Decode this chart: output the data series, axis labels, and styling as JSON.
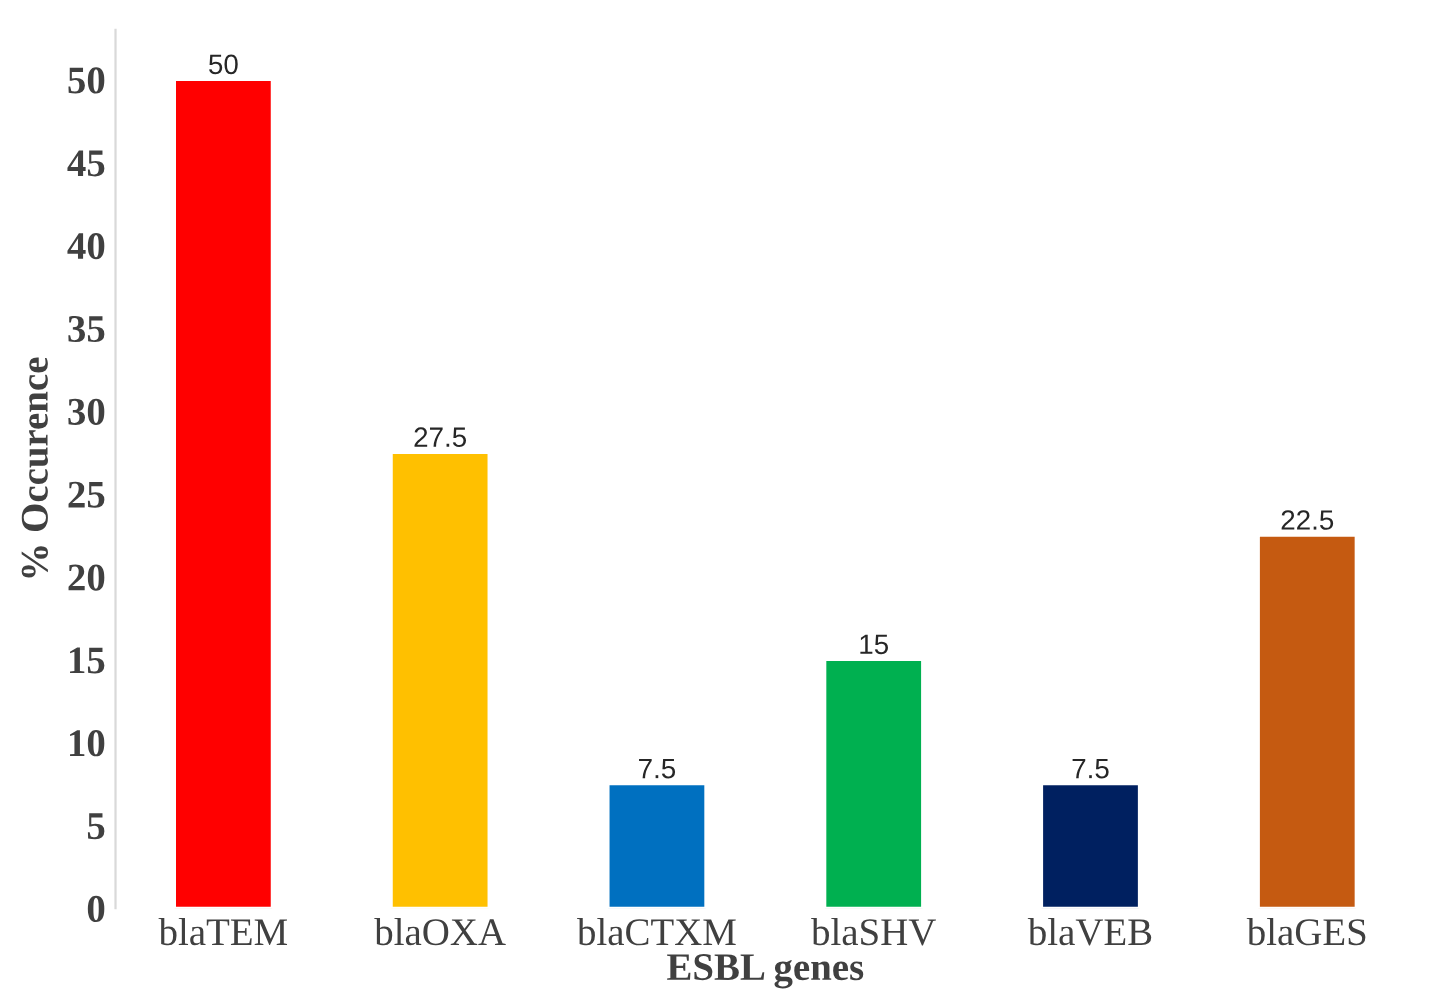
{
  "chart_data": {
    "type": "bar",
    "xlabel": "ESBL genes",
    "ylabel": "% Occurence",
    "categories": [
      "blaTEM",
      "blaOXA",
      "blaCTXM",
      "blaSHV",
      "blaVEB",
      "blaGES"
    ],
    "values": [
      50,
      27.5,
      7.5,
      15,
      7.5,
      22.5
    ],
    "colors": [
      "#ff0000",
      "#ffc000",
      "#0070c0",
      "#00b050",
      "#002060",
      "#c55a11"
    ],
    "ylim": [
      0,
      53
    ],
    "yticks": [
      0,
      5,
      10,
      15,
      20,
      25,
      30,
      35,
      40,
      45,
      50
    ],
    "data_labels": true,
    "grid": false,
    "legend": false
  }
}
